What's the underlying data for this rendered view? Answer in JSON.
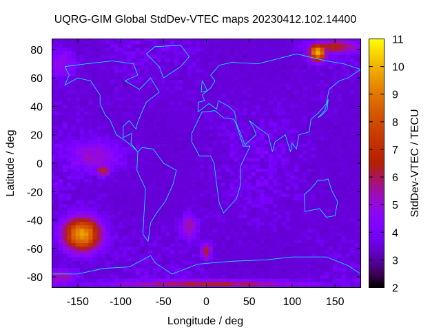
{
  "chart_data": {
    "type": "heatmap",
    "title": "UQRG-GIM Global StdDev-VTEC maps 20230412.102.14400",
    "xlabel": "Longitude / deg",
    "ylabel": "Latitude / deg",
    "cblabel": "StdDev-VTEC / TECU",
    "xlim": [
      -180,
      180
    ],
    "ylim": [
      -87.5,
      87.5
    ],
    "clim": [
      2,
      11
    ],
    "xticks": [
      "-150",
      "-100",
      "-50",
      "0",
      "50",
      "100",
      "150"
    ],
    "xtick_values": [
      -150,
      -100,
      -50,
      0,
      50,
      100,
      150
    ],
    "yticks": [
      "80",
      "60",
      "40",
      "20",
      "0",
      "-20",
      "-40",
      "-60",
      "-80"
    ],
    "ytick_values": [
      80,
      60,
      40,
      20,
      0,
      -20,
      -40,
      -60,
      -80
    ],
    "cbticks": [
      "11",
      "10",
      "9",
      "8",
      "7",
      "6",
      "5",
      "4",
      "3",
      "2"
    ],
    "cbtick_values": [
      11,
      10,
      9,
      8,
      7,
      6,
      5,
      4,
      3,
      2
    ],
    "grid_resolution_deg": {
      "lon": 5,
      "lat": 2.5
    },
    "background_value": 3.2,
    "hotspots": [
      {
        "lon": -145,
        "lat": -50,
        "value": 9.8,
        "rlon": 22,
        "rlat": 12
      },
      {
        "lon": -120,
        "lat": -5,
        "value": 7.0,
        "rlon": 8,
        "rlat": 4
      },
      {
        "lon": 130,
        "lat": 78,
        "value": 10.2,
        "rlon": 10,
        "rlat": 6
      },
      {
        "lon": 150,
        "lat": 82,
        "value": 6.5,
        "rlon": 30,
        "rlat": 5
      },
      {
        "lon": 0,
        "lat": -62,
        "value": 6.5,
        "rlon": 6,
        "rlat": 6
      },
      {
        "lon": -20,
        "lat": -45,
        "value": 5.5,
        "rlon": 10,
        "rlat": 10
      },
      {
        "lon": -130,
        "lat": 5,
        "value": 5.2,
        "rlon": 35,
        "rlat": 12
      },
      {
        "lon": 0,
        "lat": -85,
        "value": 6.2,
        "rlon": 120,
        "rlat": 3
      },
      {
        "lon": -170,
        "lat": -80,
        "value": 5.5,
        "rlon": 20,
        "rlat": 6
      },
      {
        "lon": -170,
        "lat": 70,
        "value": 4.8,
        "rlon": 20,
        "rlat": 12
      }
    ],
    "colormap": "gnuplot rgbformulae 7,5,15",
    "overlay": "coastlines",
    "overlay_color": "#00ffff",
    "grid": false,
    "legend": "colorbar-right"
  }
}
